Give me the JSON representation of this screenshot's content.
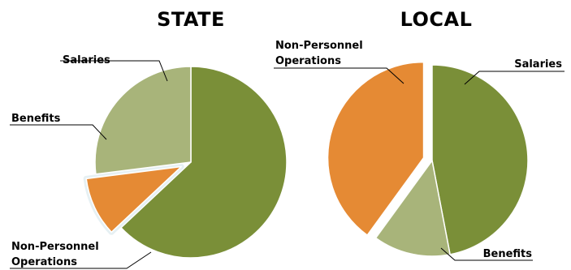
{
  "colors": {
    "salaries": "#7a8f38",
    "benefits": "#a8b47a",
    "operations": "#e58a34",
    "separator": "#ffffff",
    "halo": "#e6f0f3"
  },
  "chart_data": [
    {
      "type": "pie",
      "title": "STATE",
      "slices": [
        {
          "key": "salaries",
          "name": "Salaries",
          "value": 63
        },
        {
          "key": "operations",
          "name": "Non-Personnel Operations",
          "value": 10,
          "exploded": true
        },
        {
          "key": "benefits",
          "name": "Benefits",
          "value": 27
        }
      ]
    },
    {
      "type": "pie",
      "title": "LOCAL",
      "slices": [
        {
          "key": "salaries",
          "name": "Salaries",
          "value": 47
        },
        {
          "key": "benefits",
          "name": "Benefits",
          "value": 13
        },
        {
          "key": "operations",
          "name": "Non-Personnel Operations",
          "value": 40,
          "exploded": true
        }
      ]
    }
  ]
}
